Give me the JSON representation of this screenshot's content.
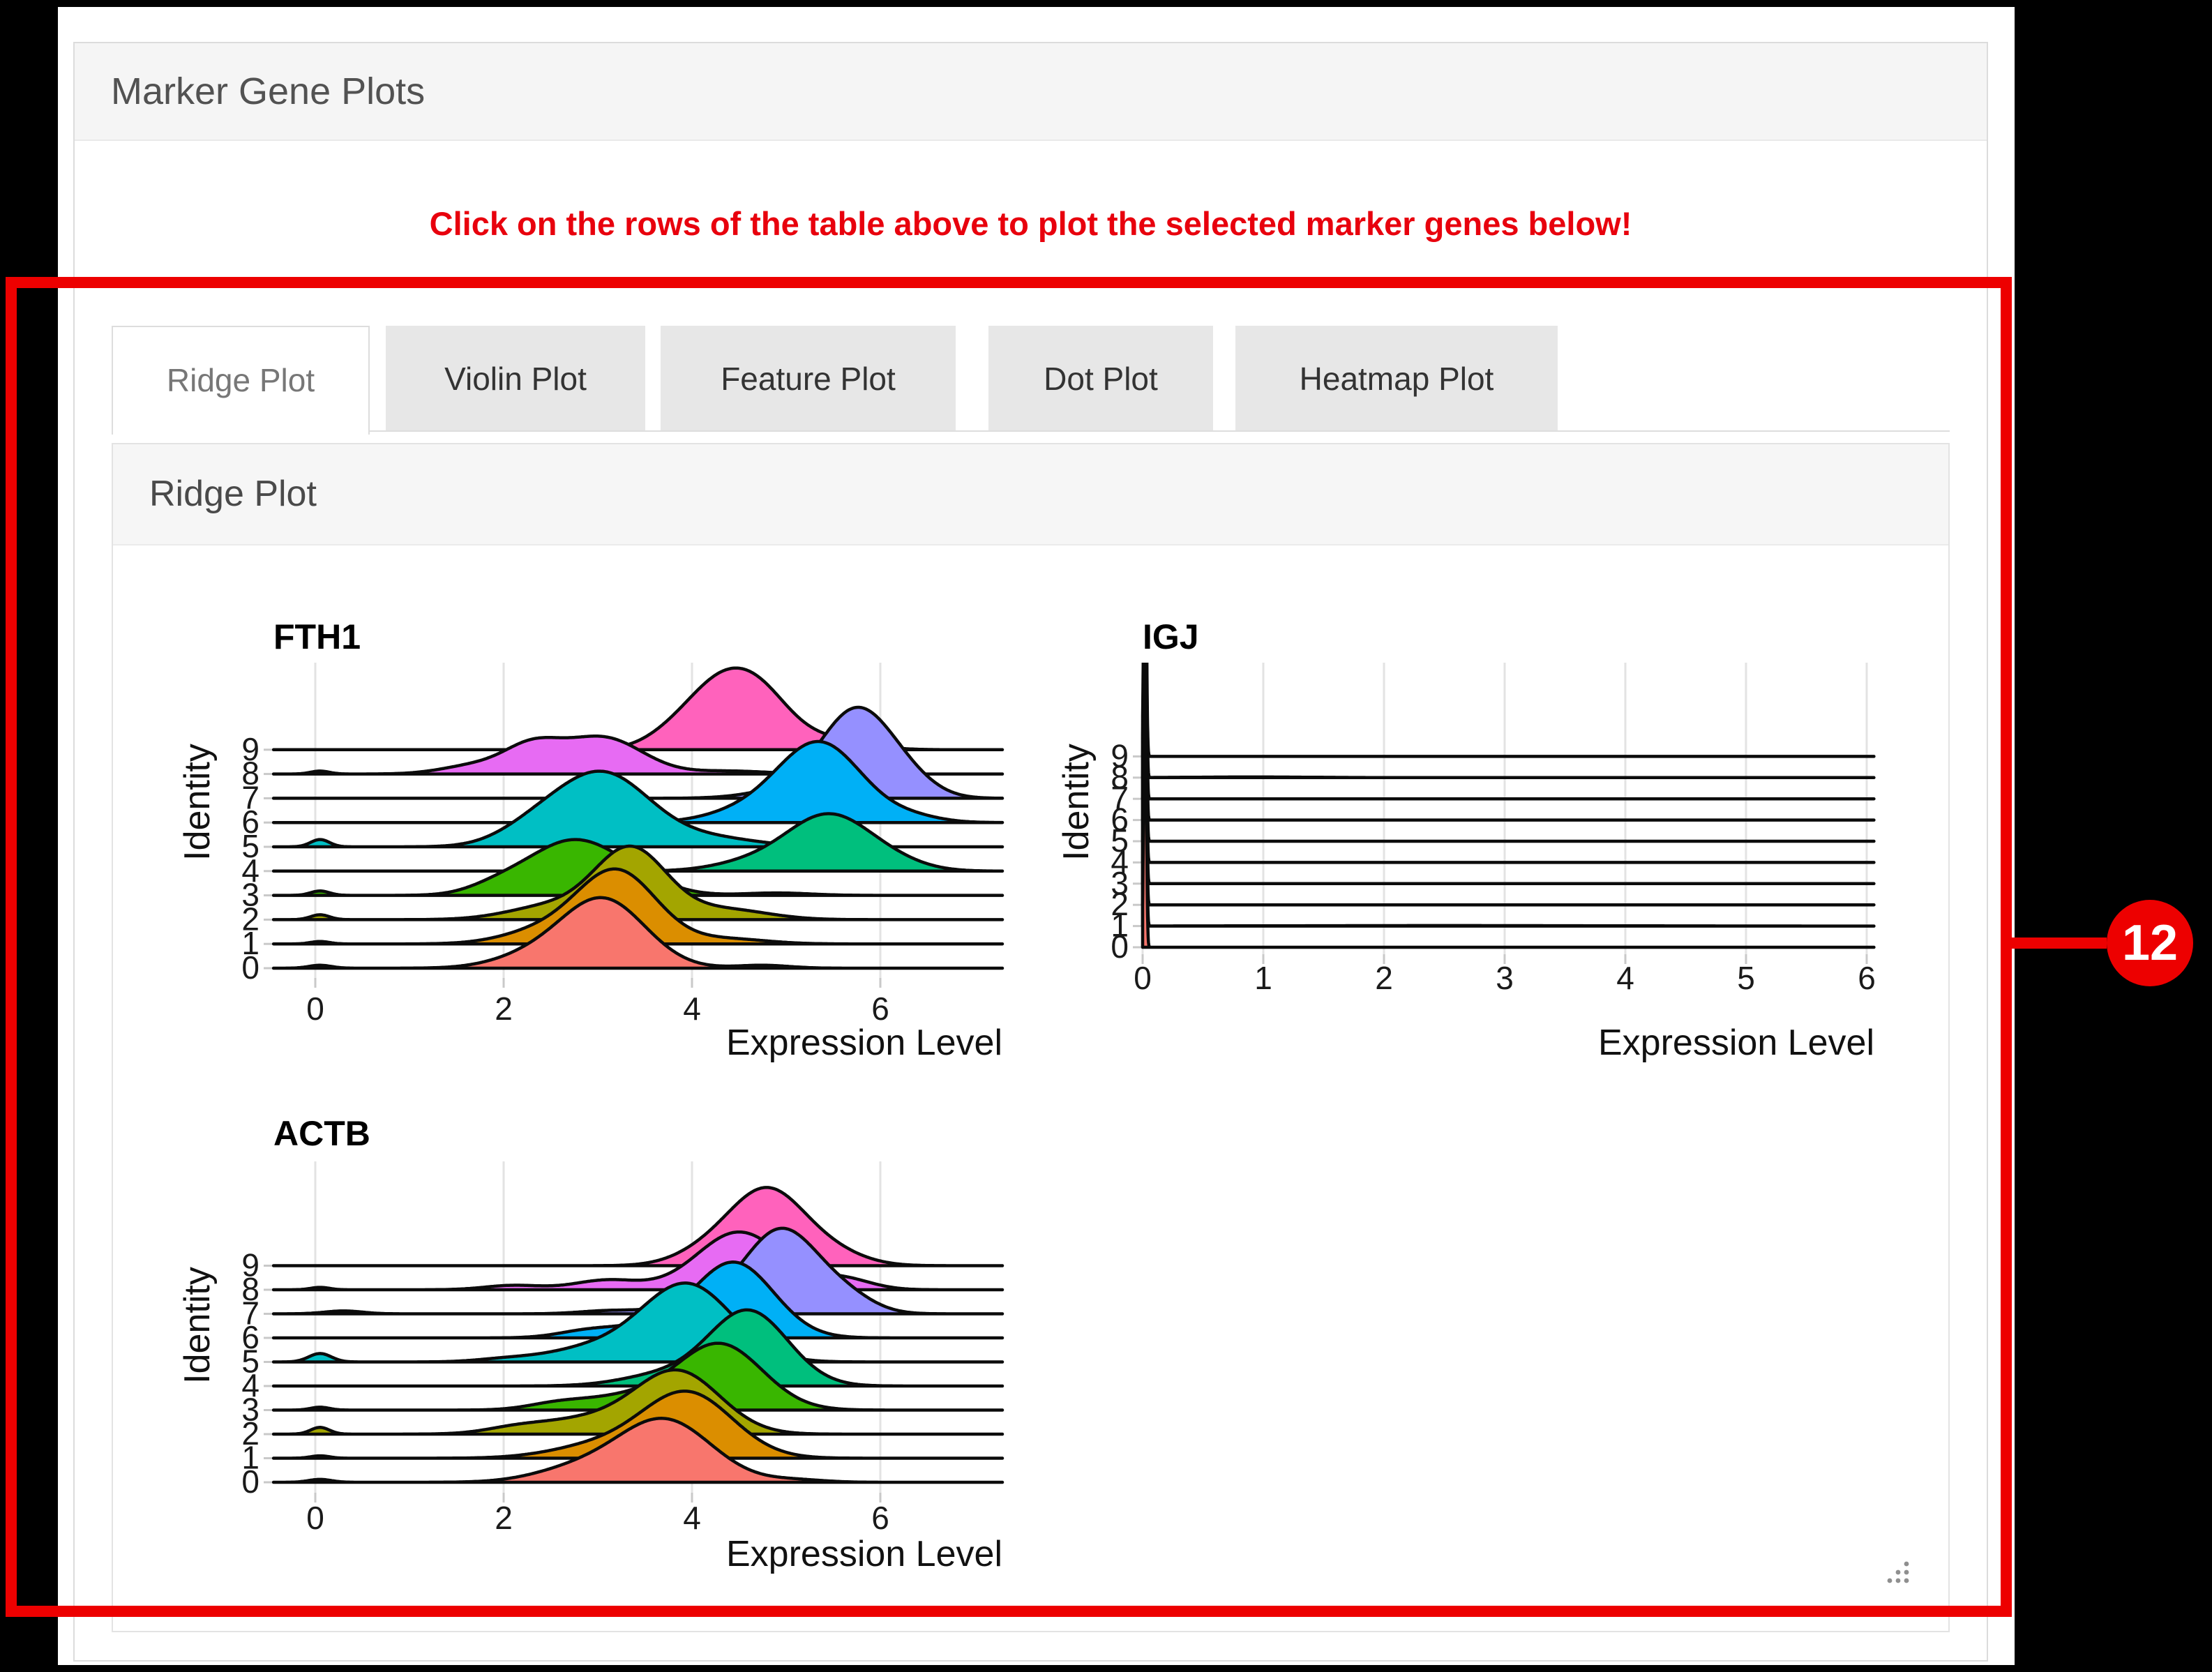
{
  "header": {
    "title": "Marker Gene Plots"
  },
  "instruction": {
    "text": "Click on the rows of the table above to plot the selected marker genes below!",
    "color": "#e8000d"
  },
  "tabs": [
    {
      "label": "Ridge Plot",
      "active": true
    },
    {
      "label": "Violin Plot",
      "active": false
    },
    {
      "label": "Feature Plot",
      "active": false
    },
    {
      "label": "Dot Plot",
      "active": false
    },
    {
      "label": "Heatmap Plot",
      "active": false
    }
  ],
  "panel": {
    "title": "Ridge Plot"
  },
  "annotation": {
    "badge": "12",
    "color": "#ed0000"
  },
  "chart_data": [
    {
      "type": "area",
      "variant": "ridgeline",
      "title": "FTH1",
      "xlabel": "Expression Level",
      "ylabel": "Identity",
      "x_ticks": [
        0,
        2,
        4,
        6
      ],
      "x_range": [
        -0.444,
        7.296
      ],
      "y_categories": [
        "0",
        "1",
        "2",
        "3",
        "4",
        "5",
        "6",
        "7",
        "8",
        "9"
      ],
      "grid": true,
      "legend": "none",
      "peak_units": "row-heights",
      "series": [
        {
          "identity": "0",
          "color": "#F8766D",
          "peaks": [
            [
              3.05,
              0.45,
              2.85
            ],
            [
              2.25,
              0.4,
              0.4
            ],
            [
              0.05,
              0.12,
              0.12
            ],
            [
              4.75,
              0.28,
              0.12
            ]
          ]
        },
        {
          "identity": "1",
          "color": "#DB8E00",
          "peaks": [
            [
              3.2,
              0.42,
              3.0
            ],
            [
              2.4,
              0.42,
              0.5
            ],
            [
              0.05,
              0.1,
              0.1
            ],
            [
              4.4,
              0.4,
              0.2
            ]
          ]
        },
        {
          "identity": "2",
          "color": "#A3A500",
          "peaks": [
            [
              3.35,
              0.38,
              2.9
            ],
            [
              2.5,
              0.45,
              0.55
            ],
            [
              4.35,
              0.45,
              0.42
            ],
            [
              0.05,
              0.1,
              0.2
            ]
          ]
        },
        {
          "identity": "3",
          "color": "#39B600",
          "peaks": [
            [
              2.7,
              0.45,
              2.1
            ],
            [
              3.35,
              0.4,
              0.6
            ],
            [
              1.95,
              0.32,
              0.38
            ],
            [
              0.05,
              0.1,
              0.18
            ],
            [
              4.9,
              0.35,
              0.1
            ]
          ]
        },
        {
          "identity": "4",
          "color": "#00BF7D",
          "peaks": [
            [
              5.45,
              0.45,
              2.3
            ],
            [
              4.6,
              0.4,
              0.3
            ],
            [
              6.15,
              0.35,
              0.25
            ]
          ]
        },
        {
          "identity": "5",
          "color": "#00BFC4",
          "peaks": [
            [
              3.05,
              0.5,
              3.0
            ],
            [
              2.3,
              0.38,
              0.6
            ],
            [
              4.2,
              0.5,
              0.35
            ],
            [
              0.05,
              0.1,
              0.3
            ]
          ]
        },
        {
          "identity": "6",
          "color": "#00B0F6",
          "peaks": [
            [
              5.35,
              0.45,
              3.3
            ],
            [
              4.5,
              0.4,
              0.35
            ],
            [
              6.35,
              0.3,
              0.2
            ]
          ]
        },
        {
          "identity": "7",
          "color": "#9590FF",
          "peaks": [
            [
              5.75,
              0.38,
              3.6
            ],
            [
              6.3,
              0.3,
              0.5
            ],
            [
              5.0,
              0.4,
              0.3
            ]
          ]
        },
        {
          "identity": "8",
          "color": "#E76BF3",
          "peaks": [
            [
              3.05,
              0.42,
              1.5
            ],
            [
              2.3,
              0.3,
              1.05
            ],
            [
              1.7,
              0.35,
              0.35
            ],
            [
              4.4,
              0.4,
              0.12
            ],
            [
              0.05,
              0.1,
              0.12
            ]
          ]
        },
        {
          "identity": "9",
          "color": "#FF62BC",
          "peaks": [
            [
              4.35,
              0.4,
              2.9
            ],
            [
              4.8,
              0.3,
              1.0
            ],
            [
              5.4,
              0.4,
              0.45
            ],
            [
              3.75,
              0.3,
              0.3
            ]
          ]
        }
      ]
    },
    {
      "type": "area",
      "variant": "ridgeline",
      "title": "IGJ",
      "xlabel": "Expression Level",
      "ylabel": "Identity",
      "x_ticks": [
        0,
        1,
        2,
        3,
        4,
        5,
        6
      ],
      "x_range": [
        0,
        6.06
      ],
      "y_categories": [
        "0",
        "1",
        "2",
        "3",
        "4",
        "5",
        "6",
        "7",
        "8",
        "9"
      ],
      "grid": true,
      "legend": "none",
      "peak_units": "row-heights",
      "series": [
        {
          "identity": "0",
          "color": "#F8766D",
          "peaks": [
            [
              0.02,
              0.01,
              14
            ]
          ]
        },
        {
          "identity": "1",
          "color": "#DB8E00",
          "peaks": [
            [
              0.02,
              0.01,
              14
            ],
            [
              2.5,
              1.3,
              0.022
            ]
          ]
        },
        {
          "identity": "2",
          "color": "#A3A500",
          "peaks": [
            [
              0.02,
              0.01,
              14
            ]
          ]
        },
        {
          "identity": "3",
          "color": "#39B600",
          "peaks": [
            [
              0.02,
              0.01,
              14
            ]
          ]
        },
        {
          "identity": "4",
          "color": "#00BF7D",
          "peaks": [
            [
              0.02,
              0.01,
              14
            ]
          ]
        },
        {
          "identity": "5",
          "color": "#00BFC4",
          "peaks": [
            [
              0.02,
              0.01,
              14
            ]
          ]
        },
        {
          "identity": "6",
          "color": "#00B0F6",
          "peaks": [
            [
              0.02,
              0.01,
              14
            ]
          ]
        },
        {
          "identity": "7",
          "color": "#9590FF",
          "peaks": [
            [
              0.02,
              0.01,
              14
            ]
          ]
        },
        {
          "identity": "8",
          "color": "#E76BF3",
          "peaks": [
            [
              0.02,
              0.01,
              14
            ],
            [
              0.9,
              0.5,
              0.03
            ]
          ]
        },
        {
          "identity": "9",
          "color": "#FF62BC",
          "peaks": [
            [
              0.02,
              0.01,
              14
            ]
          ]
        }
      ]
    },
    {
      "type": "area",
      "variant": "ridgeline",
      "title": "ACTB",
      "xlabel": "Expression Level",
      "ylabel": "Identity",
      "x_ticks": [
        0,
        2,
        4,
        6
      ],
      "x_range": [
        -0.444,
        7.296
      ],
      "y_categories": [
        "0",
        "1",
        "2",
        "3",
        "4",
        "5",
        "6",
        "7",
        "8",
        "9"
      ],
      "grid": true,
      "legend": "none",
      "peak_units": "row-heights",
      "series": [
        {
          "identity": "0",
          "color": "#F8766D",
          "peaks": [
            [
              3.7,
              0.5,
              2.6
            ],
            [
              2.75,
              0.45,
              0.5
            ],
            [
              0.05,
              0.12,
              0.12
            ],
            [
              5.1,
              0.3,
              0.1
            ]
          ]
        },
        {
          "identity": "1",
          "color": "#DB8E00",
          "peaks": [
            [
              3.95,
              0.48,
              2.7
            ],
            [
              3.0,
              0.5,
              0.5
            ],
            [
              0.05,
              0.1,
              0.1
            ]
          ]
        },
        {
          "identity": "2",
          "color": "#A3A500",
          "peaks": [
            [
              3.85,
              0.45,
              2.55
            ],
            [
              2.85,
              0.55,
              0.6
            ],
            [
              2.1,
              0.3,
              0.15
            ],
            [
              0.05,
              0.1,
              0.28
            ]
          ]
        },
        {
          "identity": "3",
          "color": "#39B600",
          "peaks": [
            [
              4.3,
              0.45,
              2.7
            ],
            [
              3.3,
              0.5,
              0.55
            ],
            [
              2.55,
              0.3,
              0.2
            ],
            [
              0.05,
              0.1,
              0.12
            ]
          ]
        },
        {
          "identity": "4",
          "color": "#00BF7D",
          "peaks": [
            [
              4.6,
              0.42,
              3.1
            ],
            [
              3.7,
              0.45,
              0.45
            ]
          ]
        },
        {
          "identity": "5",
          "color": "#00BFC4",
          "peaks": [
            [
              3.95,
              0.48,
              3.2
            ],
            [
              2.95,
              0.5,
              0.55
            ],
            [
              0.05,
              0.12,
              0.35
            ],
            [
              2.0,
              0.3,
              0.1
            ]
          ]
        },
        {
          "identity": "6",
          "color": "#00B0F6",
          "peaks": [
            [
              4.45,
              0.42,
              3.1
            ],
            [
              3.5,
              0.45,
              0.45
            ],
            [
              2.85,
              0.3,
              0.2
            ]
          ]
        },
        {
          "identity": "7",
          "color": "#9590FF",
          "peaks": [
            [
              4.95,
              0.4,
              3.5
            ],
            [
              5.65,
              0.3,
              0.55
            ],
            [
              4.0,
              0.4,
              0.3
            ],
            [
              0.3,
              0.2,
              0.12
            ],
            [
              3.1,
              0.3,
              0.12
            ]
          ]
        },
        {
          "identity": "8",
          "color": "#E76BF3",
          "peaks": [
            [
              4.5,
              0.45,
              2.4
            ],
            [
              3.1,
              0.35,
              0.4
            ],
            [
              2.1,
              0.3,
              0.18
            ],
            [
              5.6,
              0.3,
              0.45
            ],
            [
              0.05,
              0.1,
              0.1
            ]
          ]
        },
        {
          "identity": "9",
          "color": "#FF62BC",
          "peaks": [
            [
              4.8,
              0.4,
              3.1
            ],
            [
              4.15,
              0.35,
              0.5
            ],
            [
              5.5,
              0.35,
              0.45
            ]
          ]
        }
      ]
    }
  ]
}
